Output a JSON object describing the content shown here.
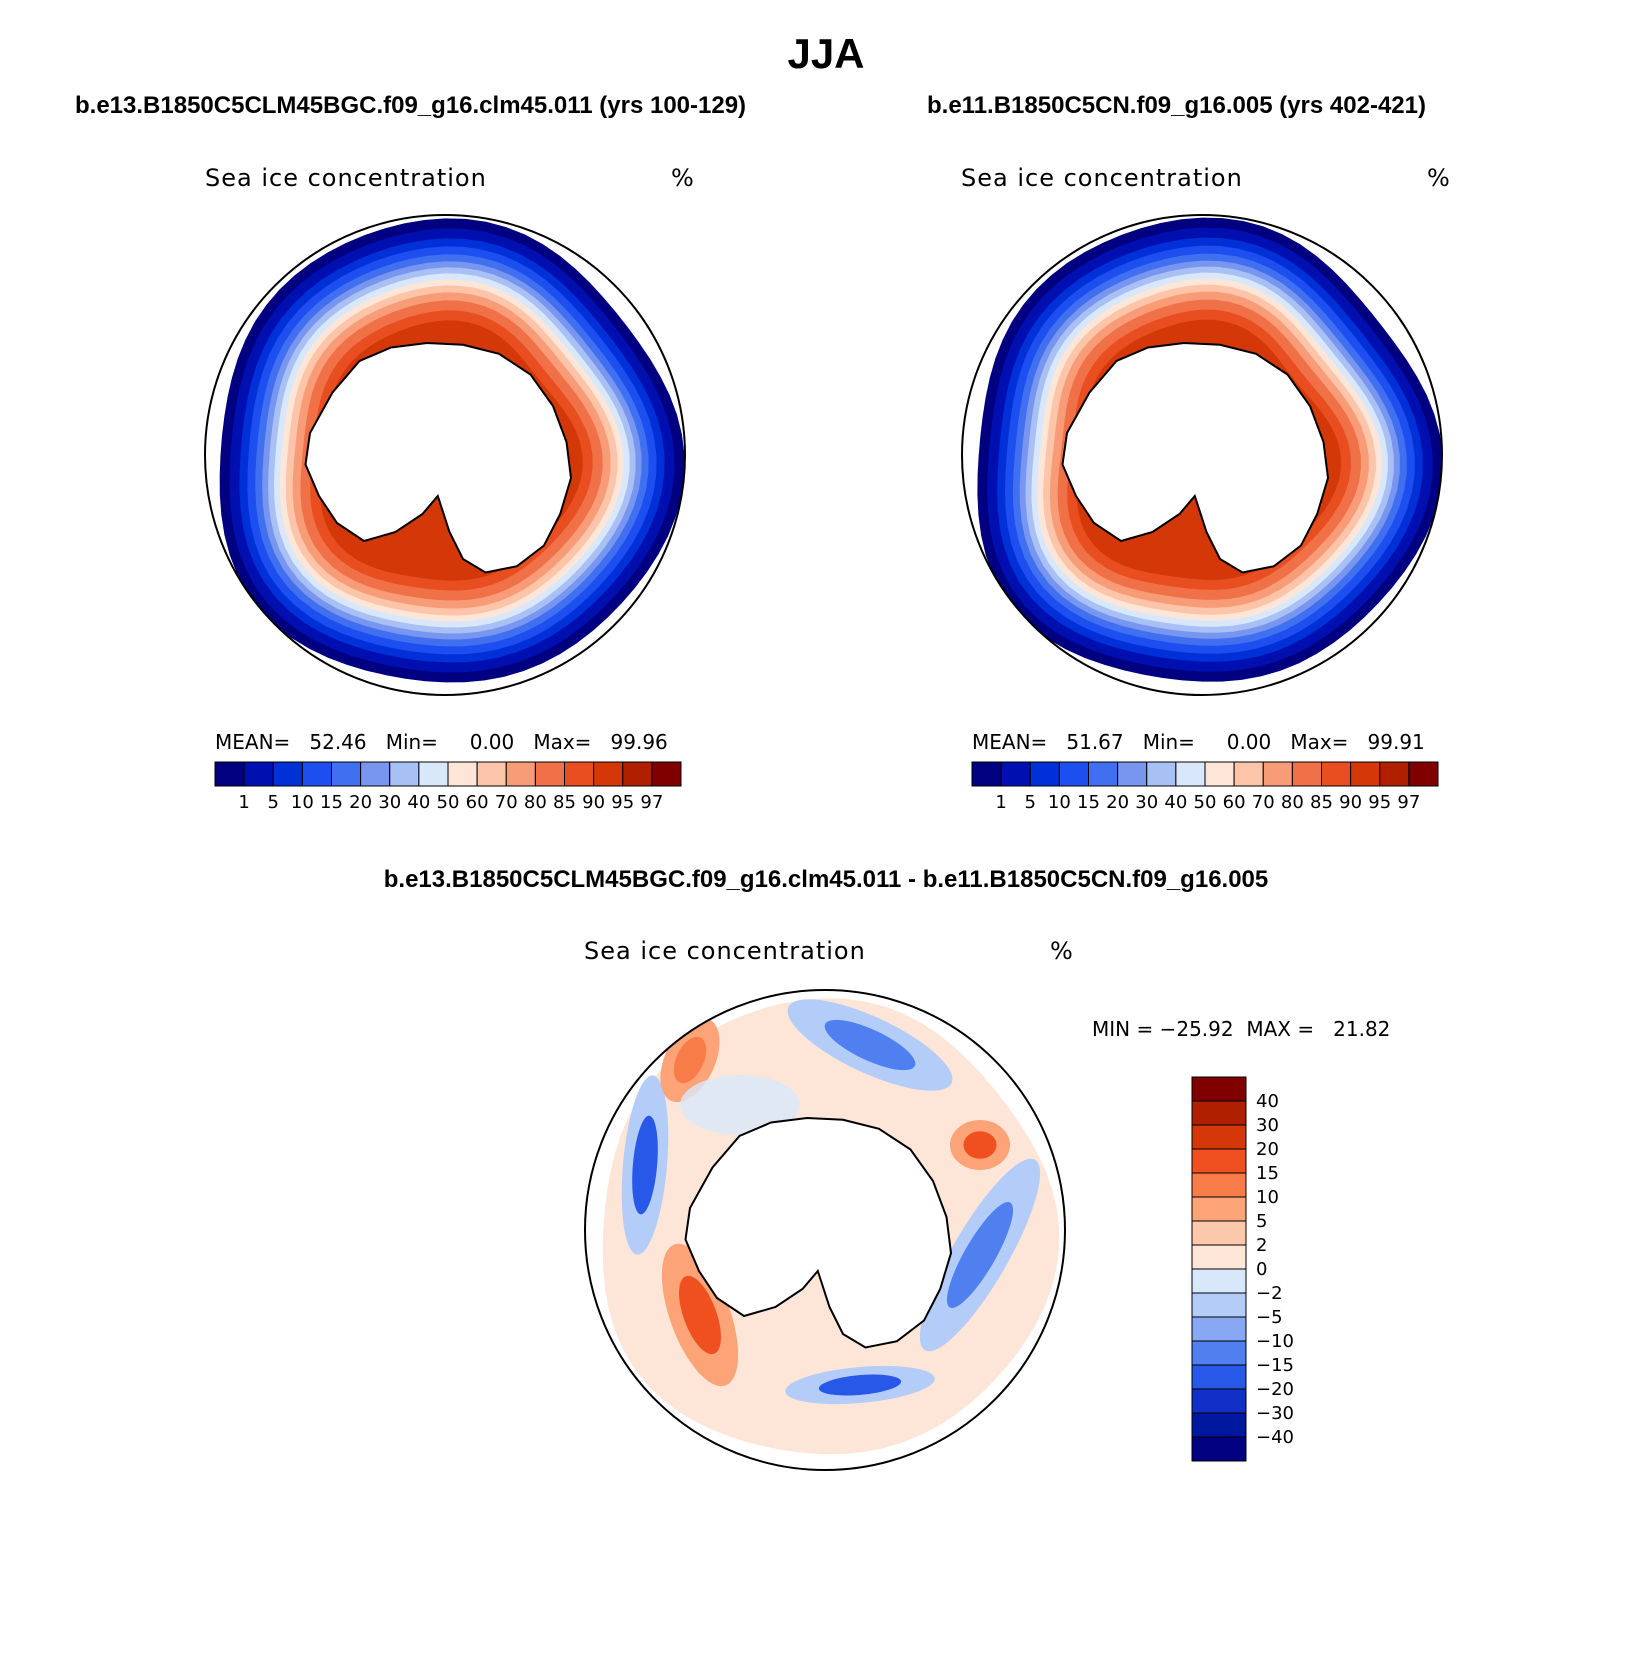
{
  "title": "JJA",
  "diff_title": "b.e13.B1850C5CLM45BGC.f09_g16.clm45.011 - b.e11.B1850C5CN.f09_g16.005",
  "panels": [
    {
      "run_title": "b.e13.B1850C5CLM45BGC.f09_g16.clm45.011 (yrs 100-129)",
      "variable": "Sea ice concentration",
      "units": "%",
      "stats": "MEAN=   52.46   Min=     0.00   Max=   99.96"
    },
    {
      "run_title": "b.e11.B1850C5CN.f09_g16.005 (yrs 402-421)",
      "variable": "Sea ice concentration",
      "units": "%",
      "stats": "MEAN=   51.67   Min=     0.00   Max=   99.91"
    },
    {
      "run_title": "b.e13.B1850C5CLM45BGC.f09_g16.clm45.011 - b.e11.B1850C5CN.f09_g16.005",
      "variable": "Sea ice concentration",
      "units": "%",
      "stats": "MIN = −25.92  MAX =   21.82"
    }
  ],
  "chart_data": [
    {
      "type": "heatmap",
      "projection": "south polar stereographic",
      "title": "b.e13.B1850C5CLM45BGC.f09_g16.clm45.011 (yrs 100-129)",
      "variable": "Sea ice concentration",
      "units": "%",
      "mean": 52.46,
      "min": 0.0,
      "max": 99.96,
      "levels": [
        "1",
        "5",
        "10",
        "15",
        "20",
        "30",
        "40",
        "50",
        "60",
        "70",
        "80",
        "85",
        "90",
        "95",
        "97"
      ],
      "colors": [
        "#000080",
        "#0010b0",
        "#0030d8",
        "#1c4ef0",
        "#4070f0",
        "#7896f0",
        "#a8c0f4",
        "#d8e8fa",
        "#fde6d8",
        "#fcc4a8",
        "#f89c78",
        "#f07048",
        "#e84e20",
        "#d43808",
        "#b02000",
        "#800000"
      ]
    },
    {
      "type": "heatmap",
      "projection": "south polar stereographic",
      "title": "b.e11.B1850C5CN.f09_g16.005 (yrs 402-421)",
      "variable": "Sea ice concentration",
      "units": "%",
      "mean": 51.67,
      "min": 0.0,
      "max": 99.91,
      "levels": [
        "1",
        "5",
        "10",
        "15",
        "20",
        "30",
        "40",
        "50",
        "60",
        "70",
        "80",
        "85",
        "90",
        "95",
        "97"
      ],
      "colors": [
        "#000080",
        "#0010b0",
        "#0030d8",
        "#1c4ef0",
        "#4070f0",
        "#7896f0",
        "#a8c0f4",
        "#d8e8fa",
        "#fde6d8",
        "#fcc4a8",
        "#f89c78",
        "#f07048",
        "#e84e20",
        "#d43808",
        "#b02000",
        "#800000"
      ]
    },
    {
      "type": "heatmap",
      "projection": "south polar stereographic",
      "title": "b.e13.B1850C5CLM45BGC.f09_g16.clm45.011 - b.e11.B1850C5CN.f09_g16.005",
      "variable": "Sea ice concentration",
      "units": "%",
      "min": -25.92,
      "max": 21.82,
      "levels": [
        "40",
        "30",
        "20",
        "15",
        "10",
        "5",
        "2",
        "0",
        "−2",
        "−5",
        "−10",
        "−15",
        "−20",
        "−30",
        "−40"
      ],
      "colors": [
        "#800000",
        "#b02000",
        "#d43808",
        "#f05020",
        "#f87c48",
        "#fca478",
        "#fcc8ac",
        "#fde6d8",
        "#d8e8fa",
        "#b4ccf8",
        "#88a8f4",
        "#5080f0",
        "#2858e8",
        "#1030c8",
        "#0018a0",
        "#000080"
      ]
    }
  ]
}
